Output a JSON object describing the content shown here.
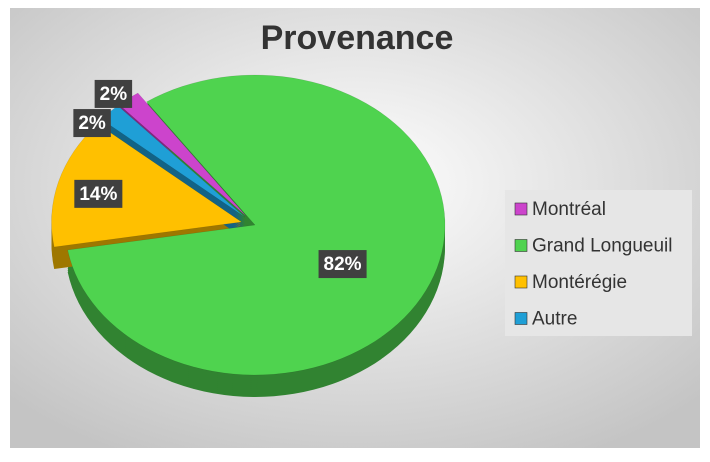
{
  "chart_data": {
    "type": "pie",
    "title": "Provenance",
    "categories": [
      "Montréal",
      "Grand Longueuil",
      "Montérégie",
      "Autre"
    ],
    "values": [
      2,
      82,
      14,
      2
    ],
    "value_labels": [
      "2%",
      "82%",
      "14%",
      "2%"
    ],
    "colors": [
      "#cc44cc",
      "#4fd34f",
      "#ffc000",
      "#1f9fd6"
    ],
    "legend": "right"
  }
}
